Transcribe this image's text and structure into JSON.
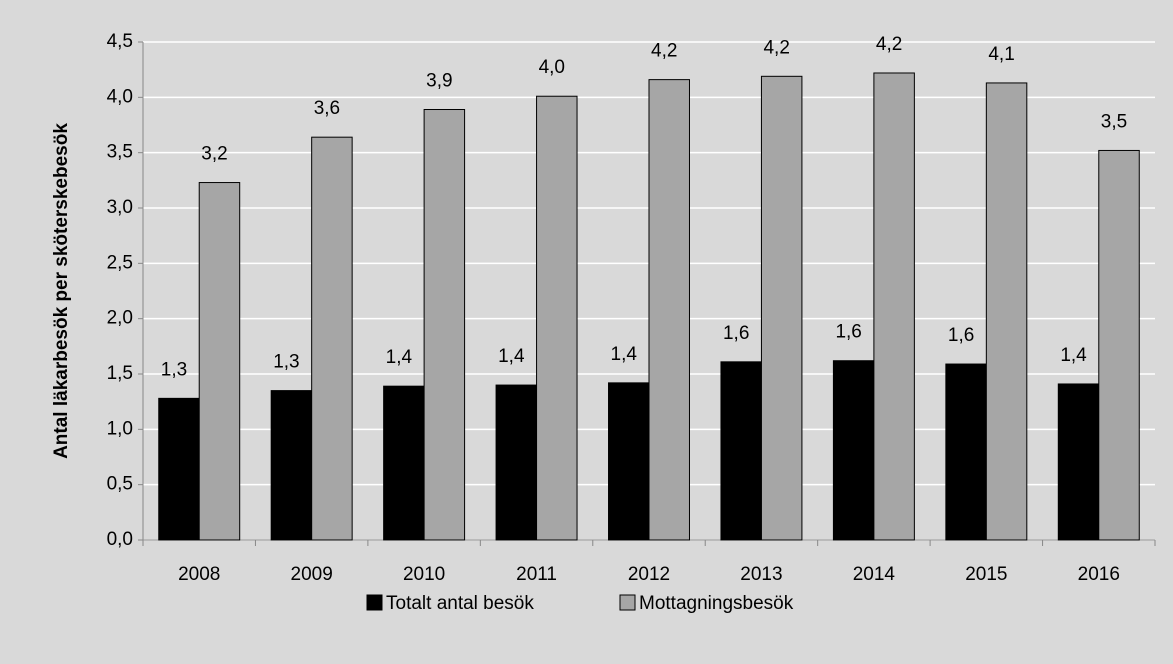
{
  "chart_data": {
    "type": "bar",
    "y_label": "Antal läkarbesök per sköterskebesök",
    "categories": [
      "2008",
      "2009",
      "2010",
      "2011",
      "2012",
      "2013",
      "2014",
      "2015",
      "2016"
    ],
    "series": [
      {
        "name": "Totalt antal besök",
        "color": "#000000",
        "values": [
          1.28,
          1.35,
          1.39,
          1.4,
          1.42,
          1.61,
          1.62,
          1.59,
          1.41
        ],
        "value_labels": [
          "1,3",
          "1,3",
          "1,4",
          "1,4",
          "1,4",
          "1,6",
          "1,6",
          "1,6",
          "1,4"
        ]
      },
      {
        "name": "Mottagningsbesök",
        "color": "#a6a6a6",
        "values": [
          3.23,
          3.64,
          3.89,
          4.01,
          4.16,
          4.19,
          4.22,
          4.13,
          3.52
        ],
        "value_labels": [
          "3,2",
          "3,6",
          "3,9",
          "4,0",
          "4,2",
          "4,2",
          "4,2",
          "4,1",
          "3,5"
        ]
      }
    ],
    "ylim": [
      0,
      4.5
    ],
    "yticks": [
      {
        "value": 0,
        "label": "0,0"
      },
      {
        "value": 0.5,
        "label": "0,5"
      },
      {
        "value": 1,
        "label": "1,0"
      },
      {
        "value": 1.5,
        "label": "1,5"
      },
      {
        "value": 2,
        "label": "2,0"
      },
      {
        "value": 2.5,
        "label": "2,5"
      },
      {
        "value": 3,
        "label": "3,0"
      },
      {
        "value": 3.5,
        "label": "3,5"
      },
      {
        "value": 4,
        "label": "4,0"
      },
      {
        "value": 4.5,
        "label": "4,5"
      }
    ],
    "grid": true
  }
}
